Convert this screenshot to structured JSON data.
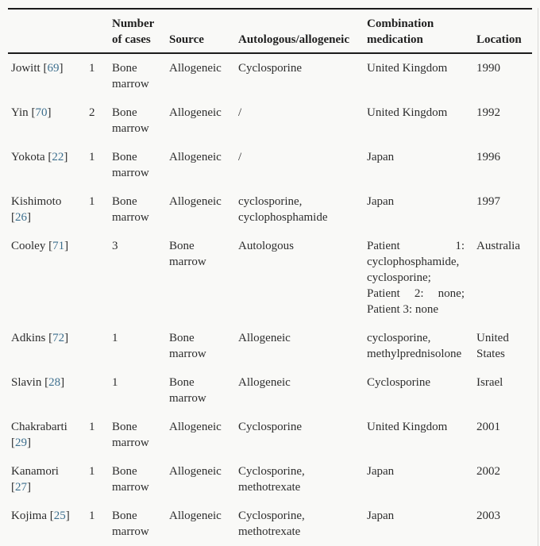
{
  "colors": {
    "link_blue": "#3d6f8e",
    "text": "#2d2d2d",
    "border_dark": "#1b1b1b",
    "background": "#f9f9f7"
  },
  "table": {
    "headers": [
      "",
      "",
      "Number of cases",
      "Source",
      "Autologous/allogeneic",
      "Combination medication",
      "Location"
    ],
    "rows": [
      {
        "author": "Jowitt",
        "ref": "69",
        "cells": [
          "1",
          "Bone marrow",
          "Allogeneic",
          "Cyclosporine",
          "United Kingdom",
          "1990"
        ]
      },
      {
        "author": "Yin",
        "ref": "70",
        "cells": [
          "2",
          "Bone marrow",
          "Allogeneic",
          "/",
          "United Kingdom",
          "1992"
        ]
      },
      {
        "author": "Yokota",
        "ref": "22",
        "cells": [
          "1",
          "Bone marrow",
          "Allogeneic",
          "/",
          "Japan",
          "1996"
        ]
      },
      {
        "author": "Kishimoto",
        "ref": "26",
        "cells": [
          "1",
          "Bone marrow",
          "Allogeneic",
          "cyclosporine, cyclophosphamide",
          "Japan",
          "1997"
        ]
      },
      {
        "author": "Cooley",
        "ref": "71",
        "cells": [
          "",
          "3",
          "Bone marrow",
          "Autologous",
          "Patient 1: cyclophosphamide, cyclosporine; Patient 2: none; Patient 3: none",
          "Australia"
        ]
      },
      {
        "author": "Adkins",
        "ref": "72",
        "cells": [
          "",
          "1",
          "Bone marrow",
          "Allogeneic",
          "cyclosporine, methylprednisolone",
          "United States"
        ]
      },
      {
        "author": "Slavin",
        "ref": "28",
        "cells": [
          "",
          "1",
          "Bone marrow",
          "Allogeneic",
          "Cyclosporine",
          "Israel"
        ]
      },
      {
        "author": "Chakrabarti",
        "ref": "29",
        "cells": [
          "1",
          "Bone marrow",
          "Allogeneic",
          "Cyclosporine",
          "United Kingdom",
          "2001"
        ]
      },
      {
        "author": "Kanamori",
        "ref": "27",
        "cells": [
          "1",
          "Bone marrow",
          "Allogeneic",
          "Cyclosporine, methotrexate",
          "Japan",
          "2002"
        ]
      },
      {
        "author": "Kojima",
        "ref": "25",
        "cells": [
          "1",
          "Bone marrow",
          "Allogeneic",
          "Cyclosporine, methotrexate",
          "Japan",
          "2003"
        ]
      }
    ]
  }
}
